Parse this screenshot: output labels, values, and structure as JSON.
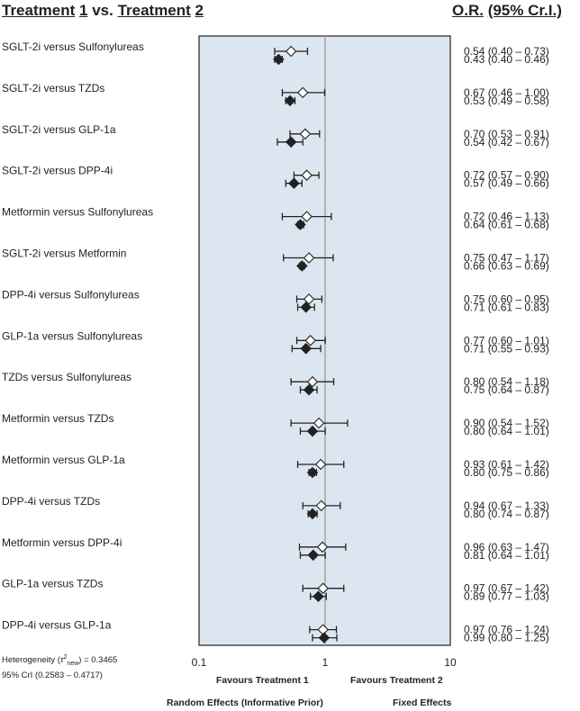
{
  "header": {
    "left": {
      "w1": "Treatment",
      "n1": "1",
      "vs": "vs.",
      "w2": "Treatment",
      "n2": "2"
    },
    "right": {
      "or": "O.R.",
      "ci": "(95% Cr.I.)"
    }
  },
  "heterogeneity": {
    "line1_prefix": "Heterogeneity (",
    "tau": "τ",
    "sup": "2",
    "sub": "new",
    "line1_suffix": ") = 0.3465",
    "line2": "95% CrI (0.2583 – 0.4717)"
  },
  "footer": {
    "favours_left": "Favours Treatment 1",
    "favours_right": "Favours Treatment 2",
    "legend_random": "Random Effects  (Informative Prior)",
    "legend_fixed": "Fixed Effects"
  },
  "colors": {
    "panel": "#dce6f1",
    "panel_border": "#222222",
    "refline": "#a0a0a0"
  },
  "chart_data": {
    "type": "forest",
    "x_scale": "log",
    "xlim": [
      0.1,
      10
    ],
    "x_ticks": [
      "0.1",
      "1",
      "10"
    ],
    "reference_line": 1,
    "series": [
      {
        "name": "Random Effects  (Informative Prior)",
        "marker": "open-diamond"
      },
      {
        "name": "Fixed Effects",
        "marker": "filled-diamond"
      }
    ],
    "rows": [
      {
        "label": "SGLT-2i versus Sulfonylureas",
        "random": {
          "or": 0.54,
          "lo": 0.4,
          "hi": 0.73,
          "text": "0.54 (0.40 – 0.73)"
        },
        "fixed": {
          "or": 0.43,
          "lo": 0.4,
          "hi": 0.46,
          "text": "0.43 (0.40 – 0.46)"
        }
      },
      {
        "label": "SGLT-2i versus TZDs",
        "random": {
          "or": 0.67,
          "lo": 0.46,
          "hi": 1.0,
          "text": "0.67 (0.46 – 1.00)"
        },
        "fixed": {
          "or": 0.53,
          "lo": 0.49,
          "hi": 0.58,
          "text": "0.53 (0.49 – 0.58)"
        }
      },
      {
        "label": "SGLT-2i versus GLP-1a",
        "random": {
          "or": 0.7,
          "lo": 0.53,
          "hi": 0.91,
          "text": "0.70 (0.53 – 0.91)"
        },
        "fixed": {
          "or": 0.54,
          "lo": 0.42,
          "hi": 0.67,
          "text": "0.54 (0.42 – 0.67)"
        }
      },
      {
        "label": "SGLT-2i versus DPP-4i",
        "random": {
          "or": 0.72,
          "lo": 0.57,
          "hi": 0.9,
          "text": "0.72 (0.57 – 0.90)"
        },
        "fixed": {
          "or": 0.57,
          "lo": 0.49,
          "hi": 0.66,
          "text": "0.57 (0.49 – 0.66)"
        }
      },
      {
        "label": "Metformin versus Sulfonylureas",
        "random": {
          "or": 0.72,
          "lo": 0.46,
          "hi": 1.13,
          "text": "0.72 (0.46 – 1.13)"
        },
        "fixed": {
          "or": 0.64,
          "lo": 0.61,
          "hi": 0.68,
          "text": "0.64 (0.61 – 0.68)"
        }
      },
      {
        "label": "SGLT-2i versus Metformin",
        "random": {
          "or": 0.75,
          "lo": 0.47,
          "hi": 1.17,
          "text": "0.75 (0.47 – 1.17)"
        },
        "fixed": {
          "or": 0.66,
          "lo": 0.63,
          "hi": 0.69,
          "text": "0.66 (0.63 – 0.69)"
        }
      },
      {
        "label": "DPP-4i versus Sulfonylureas",
        "random": {
          "or": 0.75,
          "lo": 0.6,
          "hi": 0.95,
          "text": "0.75 (0.60 – 0.95)"
        },
        "fixed": {
          "or": 0.71,
          "lo": 0.61,
          "hi": 0.83,
          "text": "0.71 (0.61 – 0.83)"
        }
      },
      {
        "label": "GLP-1a versus Sulfonylureas",
        "random": {
          "or": 0.77,
          "lo": 0.6,
          "hi": 1.01,
          "text": "0.77 (0.60 – 1.01)"
        },
        "fixed": {
          "or": 0.71,
          "lo": 0.55,
          "hi": 0.93,
          "text": "0.71 (0.55 – 0.93)"
        }
      },
      {
        "label": "TZDs versus Sulfonylureas",
        "random": {
          "or": 0.8,
          "lo": 0.54,
          "hi": 1.18,
          "text": "0.80 (0.54 – 1.18)"
        },
        "fixed": {
          "or": 0.75,
          "lo": 0.64,
          "hi": 0.87,
          "text": "0.75 (0.64 – 0.87)"
        }
      },
      {
        "label": "Metformin versus TZDs",
        "random": {
          "or": 0.9,
          "lo": 0.54,
          "hi": 1.52,
          "text": "0.90 (0.54 – 1.52)"
        },
        "fixed": {
          "or": 0.8,
          "lo": 0.64,
          "hi": 1.01,
          "text": "0.80 (0.64 – 1.01)"
        }
      },
      {
        "label": "Metformin versus GLP-1a",
        "random": {
          "or": 0.93,
          "lo": 0.61,
          "hi": 1.42,
          "text": "0.93 (0.61 – 1.42)"
        },
        "fixed": {
          "or": 0.8,
          "lo": 0.75,
          "hi": 0.86,
          "text": "0.80 (0.75 – 0.86)"
        }
      },
      {
        "label": "DPP-4i versus TZDs",
        "random": {
          "or": 0.94,
          "lo": 0.67,
          "hi": 1.33,
          "text": "0.94 (0.67 – 1.33)"
        },
        "fixed": {
          "or": 0.8,
          "lo": 0.74,
          "hi": 0.87,
          "text": "0.80 (0.74 – 0.87)"
        }
      },
      {
        "label": "Metformin versus DPP-4i",
        "random": {
          "or": 0.96,
          "lo": 0.63,
          "hi": 1.47,
          "text": "0.96 (0.63 – 1.47)"
        },
        "fixed": {
          "or": 0.81,
          "lo": 0.64,
          "hi": 1.01,
          "text": "0.81 (0.64 – 1.01)"
        }
      },
      {
        "label": "GLP-1a versus TZDs",
        "random": {
          "or": 0.97,
          "lo": 0.67,
          "hi": 1.42,
          "text": "0.97 (0.67 – 1.42)"
        },
        "fixed": {
          "or": 0.89,
          "lo": 0.77,
          "hi": 1.03,
          "text": "0.89 (0.77 – 1.03)"
        }
      },
      {
        "label": "DPP-4i versus GLP-1a",
        "random": {
          "or": 0.97,
          "lo": 0.76,
          "hi": 1.24,
          "text": "0.97 (0.76 – 1.24)"
        },
        "fixed": {
          "or": 0.99,
          "lo": 0.8,
          "hi": 1.25,
          "text": "0.99 (0.80 – 1.25)"
        }
      }
    ]
  }
}
